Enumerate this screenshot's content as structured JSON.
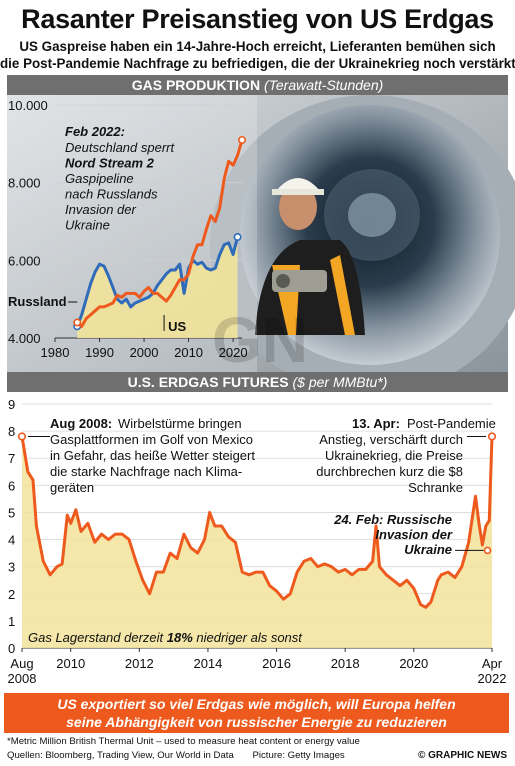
{
  "header": {
    "title": "Rasanter Preisanstieg von US Erdgas",
    "subtitle_line1": "US Gaspreise haben ein 14-Jahre-Hoch erreicht, Lieferanten bemühen sich",
    "subtitle_line2": "die Post-Pandemie Nachfrage zu befriedigen, die der Ukrainekrieg noch verstärkt"
  },
  "sections": {
    "production": {
      "label": "GAS PRODUKTION",
      "unit": "(Terawatt-Stunden)"
    },
    "futures": {
      "label": "U.S. ERDGAS FUTURES",
      "unit": "($ per MMBtu*)"
    }
  },
  "annotations": {
    "nord_stream": {
      "date": "Feb 2022:",
      "lines": [
        "Deutschland sperrt",
        "Nord Stream 2",
        "Gaspipeline",
        "nach Russlands",
        "Invasion der",
        "Ukraine"
      ]
    },
    "aug2008": {
      "date": "Aug 2008:",
      "lines": [
        "Wirbelstürme bringen",
        "Gasplattformen im Golf von Mexico",
        "in Gefahr, das heiße Wetter steigert",
        "die starke Nachfrage nach Klima-",
        "geräten"
      ]
    },
    "apr13": {
      "date": "13. Apr:",
      "lines": [
        "Post-Pandemie",
        "Anstieg, verschärft durch",
        "Ukrainekrieg, die Preise",
        "durchbrechen kurz die $8",
        "Schranke"
      ]
    },
    "feb24": {
      "lines": [
        "24. Feb: Russische",
        "Invasion der",
        "Ukraine"
      ]
    },
    "storage": {
      "prefix": "Gas Lagerstand derzeit",
      "value": "18%",
      "suffix": "niedriger als sonst"
    }
  },
  "banner": {
    "line1": "US exportiert so viel Erdgas wie möglich, will Europa helfen",
    "line2": "seine Abhängigkeit von russischer Energie zu reduzieren"
  },
  "footer": {
    "note": "*Metric Million British Thermal Unit – used to measure heat content or energy value",
    "sources": "Quellen: Bloomberg, Trading View, Our World in Data",
    "picture": "Picture: Getty Images",
    "credit": "© GRAPHIC NEWS"
  },
  "colors": {
    "orange": "#ee5a1e",
    "blue": "#2f6bb8",
    "fill": "#f2e39a",
    "band": "#6f6f6f"
  },
  "chart_data": [
    {
      "type": "line",
      "title": "GAS PRODUKTION",
      "ylabel": "(Terawatt-Stunden)",
      "xlim": [
        1980,
        2022
      ],
      "ylim": [
        4000,
        10000
      ],
      "x_ticks": [
        "1980",
        "1990",
        "2000",
        "2010",
        "2020"
      ],
      "y_ticks": [
        "4.000",
        "6.000",
        "8.000",
        "10.000"
      ],
      "series": [
        {
          "name": "Russland",
          "x": [
            1985,
            1986,
            1987,
            1988,
            1989,
            1990,
            1991,
            1992,
            1993,
            1994,
            1995,
            1996,
            1997,
            1998,
            1999,
            2000,
            2001,
            2002,
            2003,
            2004,
            2005,
            2006,
            2007,
            2008,
            2009,
            2010,
            2011,
            2012,
            2013,
            2014,
            2015,
            2016,
            2017,
            2018,
            2019,
            2020,
            2021
          ],
          "values": [
            4300,
            4600,
            5000,
            5400,
            5700,
            5900,
            5850,
            5600,
            5300,
            5000,
            4900,
            5000,
            4800,
            4900,
            4950,
            5000,
            5050,
            5150,
            5350,
            5500,
            5650,
            5750,
            5750,
            5900,
            5150,
            5800,
            6000,
            5900,
            5950,
            5800,
            5750,
            5800,
            6150,
            6400,
            6450,
            6150,
            6600
          ]
        },
        {
          "name": "US",
          "x": [
            1985,
            1986,
            1987,
            1988,
            1989,
            1990,
            1991,
            1992,
            1993,
            1994,
            1995,
            1996,
            1997,
            1998,
            1999,
            2000,
            2001,
            2002,
            2003,
            2004,
            2005,
            2006,
            2007,
            2008,
            2009,
            2010,
            2011,
            2012,
            2013,
            2014,
            2015,
            2016,
            2017,
            2018,
            2019,
            2020,
            2021,
            2022
          ],
          "values": [
            4400,
            4300,
            4500,
            4600,
            4700,
            4800,
            4800,
            4850,
            4900,
            5100,
            5050,
            5150,
            5150,
            5150,
            5050,
            5200,
            5300,
            5150,
            5150,
            5050,
            4950,
            5100,
            5300,
            5500,
            5500,
            5650,
            6100,
            6400,
            6400,
            6800,
            7150,
            7000,
            7350,
            8100,
            8550,
            8450,
            8700,
            9100
          ]
        }
      ],
      "annotations": [
        "Russland",
        "US"
      ]
    },
    {
      "type": "area",
      "title": "U.S. ERDGAS FUTURES",
      "ylabel": "($ per MMBtu*)",
      "ylim": [
        0,
        9
      ],
      "x_ticks": [
        "Aug\n2008",
        "2010",
        "2012",
        "2014",
        "2016",
        "2018",
        "2020",
        "Apr\n2022"
      ],
      "y_ticks": [
        "0",
        "1",
        "2",
        "3",
        "4",
        "5",
        "6",
        "7",
        "8",
        "9"
      ],
      "series": [
        {
          "name": "",
          "x": [
            2008.58,
            2008.75,
            2008.9,
            2009.0,
            2009.2,
            2009.4,
            2009.6,
            2009.75,
            2009.9,
            2010.0,
            2010.15,
            2010.3,
            2010.5,
            2010.7,
            2010.9,
            2011.1,
            2011.3,
            2011.5,
            2011.7,
            2011.9,
            2012.1,
            2012.3,
            2012.5,
            2012.7,
            2012.9,
            2013.1,
            2013.3,
            2013.5,
            2013.7,
            2013.9,
            2014.05,
            2014.2,
            2014.4,
            2014.6,
            2014.8,
            2015.0,
            2015.2,
            2015.4,
            2015.6,
            2015.8,
            2016.0,
            2016.2,
            2016.4,
            2016.6,
            2016.8,
            2017.0,
            2017.2,
            2017.4,
            2017.6,
            2017.8,
            2018.0,
            2018.2,
            2018.4,
            2018.6,
            2018.8,
            2018.9,
            2019.0,
            2019.2,
            2019.4,
            2019.6,
            2019.8,
            2020.0,
            2020.2,
            2020.35,
            2020.5,
            2020.7,
            2020.8,
            2021.0,
            2021.2,
            2021.4,
            2021.6,
            2021.8,
            2021.9,
            2022.0,
            2022.1,
            2022.2,
            2022.28
          ],
          "values": [
            7.8,
            6.5,
            6.2,
            4.5,
            3.2,
            2.7,
            3.0,
            3.1,
            4.9,
            4.6,
            5.1,
            4.3,
            4.6,
            3.9,
            4.2,
            4.0,
            4.2,
            4.2,
            4.0,
            3.2,
            2.5,
            2.0,
            2.8,
            2.8,
            3.5,
            3.3,
            4.2,
            3.7,
            3.5,
            4.0,
            5.0,
            4.5,
            4.5,
            4.1,
            3.9,
            2.8,
            2.7,
            2.8,
            2.8,
            2.3,
            2.1,
            1.8,
            2.0,
            2.8,
            3.2,
            3.3,
            3.0,
            3.1,
            3.0,
            2.8,
            2.9,
            2.7,
            2.9,
            2.9,
            3.2,
            4.5,
            3.0,
            2.7,
            2.5,
            2.3,
            2.5,
            2.2,
            1.6,
            1.5,
            1.7,
            2.5,
            2.7,
            2.8,
            2.6,
            3.0,
            3.9,
            5.6,
            4.6,
            3.8,
            4.5,
            4.7,
            7.8
          ]
        }
      ],
      "annotations": [
        "Aug 2008",
        "13. Apr",
        "24. Feb",
        "Gas Lagerstand derzeit 18% niedriger als sonst"
      ]
    }
  ]
}
